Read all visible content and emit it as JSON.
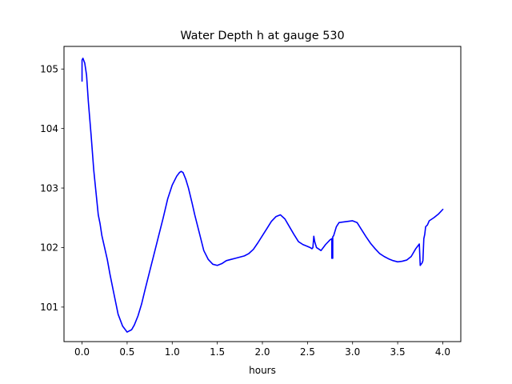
{
  "chart_data": {
    "type": "line",
    "title": "Water Depth h at gauge 530",
    "xlabel": "hours",
    "ylabel": "",
    "xlim": [
      -0.2,
      4.2
    ],
    "ylim": [
      100.42,
      105.38
    ],
    "x_ticks": [
      0.0,
      0.5,
      1.0,
      1.5,
      2.0,
      2.5,
      3.0,
      3.5,
      4.0
    ],
    "x_tick_labels": [
      "0.0",
      "0.5",
      "1.0",
      "1.5",
      "2.0",
      "2.5",
      "3.0",
      "3.5",
      "4.0"
    ],
    "y_ticks": [
      101,
      102,
      103,
      104,
      105
    ],
    "y_tick_labels": [
      "101",
      "102",
      "103",
      "104",
      "105"
    ],
    "grid": false,
    "legend": "none",
    "series": [
      {
        "color": "#0000ff",
        "x": [
          0.0,
          0.0,
          0.01,
          0.03,
          0.05,
          0.07,
          0.1,
          0.13,
          0.16,
          0.18,
          0.2,
          0.22,
          0.25,
          0.28,
          0.31,
          0.35,
          0.4,
          0.45,
          0.5,
          0.55,
          0.58,
          0.62,
          0.66,
          0.7,
          0.75,
          0.8,
          0.85,
          0.9,
          0.95,
          1.0,
          1.05,
          1.08,
          1.1,
          1.12,
          1.15,
          1.18,
          1.22,
          1.25,
          1.3,
          1.35,
          1.4,
          1.45,
          1.5,
          1.55,
          1.6,
          1.65,
          1.7,
          1.75,
          1.8,
          1.85,
          1.9,
          1.95,
          2.0,
          2.05,
          2.1,
          2.15,
          2.2,
          2.25,
          2.3,
          2.35,
          2.4,
          2.45,
          2.5,
          2.53,
          2.55,
          2.56,
          2.57,
          2.58,
          2.6,
          2.65,
          2.7,
          2.75,
          2.77,
          2.77,
          2.78,
          2.78,
          2.79,
          2.82,
          2.85,
          2.9,
          2.95,
          3.0,
          3.05,
          3.1,
          3.15,
          3.2,
          3.25,
          3.3,
          3.35,
          3.4,
          3.45,
          3.5,
          3.55,
          3.6,
          3.65,
          3.7,
          3.72,
          3.74,
          3.75,
          3.75,
          3.77,
          3.78,
          3.79,
          3.8,
          3.81,
          3.83,
          3.85,
          3.9,
          3.95,
          4.0
        ],
        "y": [
          104.8,
          105.15,
          105.18,
          105.1,
          104.9,
          104.45,
          103.9,
          103.3,
          102.85,
          102.55,
          102.4,
          102.2,
          102.0,
          101.8,
          101.55,
          101.25,
          100.88,
          100.68,
          100.58,
          100.62,
          100.7,
          100.85,
          101.05,
          101.3,
          101.6,
          101.9,
          102.2,
          102.5,
          102.82,
          103.05,
          103.2,
          103.26,
          103.28,
          103.26,
          103.15,
          103.0,
          102.75,
          102.55,
          102.25,
          101.95,
          101.8,
          101.72,
          101.7,
          101.73,
          101.78,
          101.8,
          101.82,
          101.84,
          101.86,
          101.9,
          101.97,
          102.08,
          102.2,
          102.32,
          102.44,
          102.52,
          102.55,
          102.48,
          102.35,
          102.22,
          102.1,
          102.05,
          102.02,
          102.0,
          101.98,
          102.0,
          102.19,
          102.1,
          102.0,
          101.95,
          102.05,
          102.13,
          102.15,
          101.82,
          101.82,
          102.18,
          102.2,
          102.35,
          102.42,
          102.43,
          102.44,
          102.45,
          102.42,
          102.3,
          102.18,
          102.07,
          101.98,
          101.9,
          101.85,
          101.81,
          101.78,
          101.76,
          101.77,
          101.79,
          101.85,
          101.98,
          102.02,
          102.06,
          101.7,
          101.7,
          101.74,
          101.78,
          102.15,
          102.22,
          102.35,
          102.38,
          102.45,
          102.5,
          102.56,
          102.64
        ]
      }
    ]
  }
}
